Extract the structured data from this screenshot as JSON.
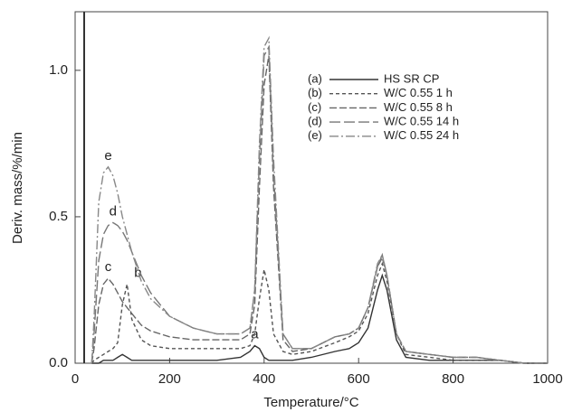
{
  "chart_data": {
    "type": "line",
    "x_label": "Temperature/°C",
    "y_label": "Deriv. mass/%/min",
    "xlim": [
      0,
      1000
    ],
    "xticks": [
      0,
      200,
      400,
      600,
      800,
      1000
    ],
    "ylim": [
      0,
      1.2
    ],
    "yticks": [
      {
        "value": 0,
        "label": "0.0"
      },
      {
        "value": 0.5,
        "label": "0.5"
      },
      {
        "value": 1,
        "label": "1.0"
      }
    ],
    "x": [
      35,
      40,
      50,
      60,
      70,
      80,
      90,
      100,
      110,
      120,
      140,
      160,
      200,
      250,
      300,
      350,
      370,
      380,
      390,
      400,
      410,
      420,
      440,
      460,
      500,
      550,
      580,
      600,
      620,
      640,
      650,
      660,
      680,
      700,
      750,
      800,
      850,
      900,
      950,
      1000
    ],
    "series": [
      {
        "tag": "(a)",
        "label": "a",
        "name": "HS SR CP",
        "color": "#333333",
        "dash": "none",
        "values": [
          0,
          0,
          0,
          0.01,
          0.01,
          0.01,
          0.02,
          0.03,
          0.02,
          0.01,
          0.01,
          0.01,
          0.01,
          0.01,
          0.01,
          0.02,
          0.04,
          0.06,
          0.05,
          0.02,
          0.01,
          0.01,
          0.01,
          0.01,
          0.02,
          0.04,
          0.05,
          0.07,
          0.12,
          0.25,
          0.3,
          0.25,
          0.08,
          0.02,
          0.01,
          0.01,
          0.01,
          0.01,
          0,
          0
        ]
      },
      {
        "tag": "(b)",
        "label": "b",
        "name": "W/C 0.55 1 h",
        "color": "#555555",
        "dash": "4 3",
        "values": [
          0,
          0.01,
          0.02,
          0.03,
          0.04,
          0.05,
          0.07,
          0.2,
          0.27,
          0.15,
          0.08,
          0.06,
          0.05,
          0.05,
          0.05,
          0.05,
          0.06,
          0.1,
          0.22,
          0.32,
          0.25,
          0.1,
          0.04,
          0.03,
          0.04,
          0.07,
          0.09,
          0.11,
          0.17,
          0.3,
          0.34,
          0.28,
          0.1,
          0.03,
          0.02,
          0.01,
          0.01,
          0.01,
          0,
          0
        ]
      },
      {
        "tag": "(c)",
        "label": "c",
        "name": "W/C 0.55 8 h",
        "color": "#666666",
        "dash": "8 3",
        "values": [
          0,
          0.05,
          0.2,
          0.27,
          0.29,
          0.27,
          0.24,
          0.21,
          0.19,
          0.17,
          0.13,
          0.11,
          0.09,
          0.08,
          0.08,
          0.08,
          0.1,
          0.2,
          0.6,
          0.95,
          1.05,
          0.6,
          0.08,
          0.04,
          0.05,
          0.09,
          0.1,
          0.12,
          0.19,
          0.33,
          0.36,
          0.3,
          0.1,
          0.04,
          0.03,
          0.02,
          0.02,
          0.01,
          0,
          0
        ]
      },
      {
        "tag": "(d)",
        "label": "d",
        "name": "W/C 0.55 14 h",
        "color": "#777777",
        "dash": "12 4",
        "values": [
          0,
          0.1,
          0.35,
          0.44,
          0.47,
          0.48,
          0.47,
          0.45,
          0.42,
          0.38,
          0.3,
          0.24,
          0.16,
          0.12,
          0.1,
          0.1,
          0.12,
          0.25,
          0.7,
          1.05,
          1.08,
          0.65,
          0.1,
          0.05,
          0.05,
          0.09,
          0.1,
          0.12,
          0.19,
          0.33,
          0.37,
          0.3,
          0.1,
          0.04,
          0.03,
          0.02,
          0.02,
          0.01,
          0,
          0
        ]
      },
      {
        "tag": "(e)",
        "label": "e",
        "name": "W/C 0.55 24 h",
        "color": "#888888",
        "dash": "10 3 2 3",
        "values": [
          0,
          0.15,
          0.55,
          0.65,
          0.67,
          0.64,
          0.58,
          0.5,
          0.44,
          0.38,
          0.28,
          0.22,
          0.16,
          0.12,
          0.1,
          0.1,
          0.12,
          0.25,
          0.75,
          1.08,
          1.11,
          0.7,
          0.1,
          0.05,
          0.05,
          0.09,
          0.1,
          0.12,
          0.19,
          0.34,
          0.37,
          0.3,
          0.1,
          0.04,
          0.03,
          0.02,
          0.02,
          0.01,
          0,
          0
        ]
      }
    ]
  }
}
